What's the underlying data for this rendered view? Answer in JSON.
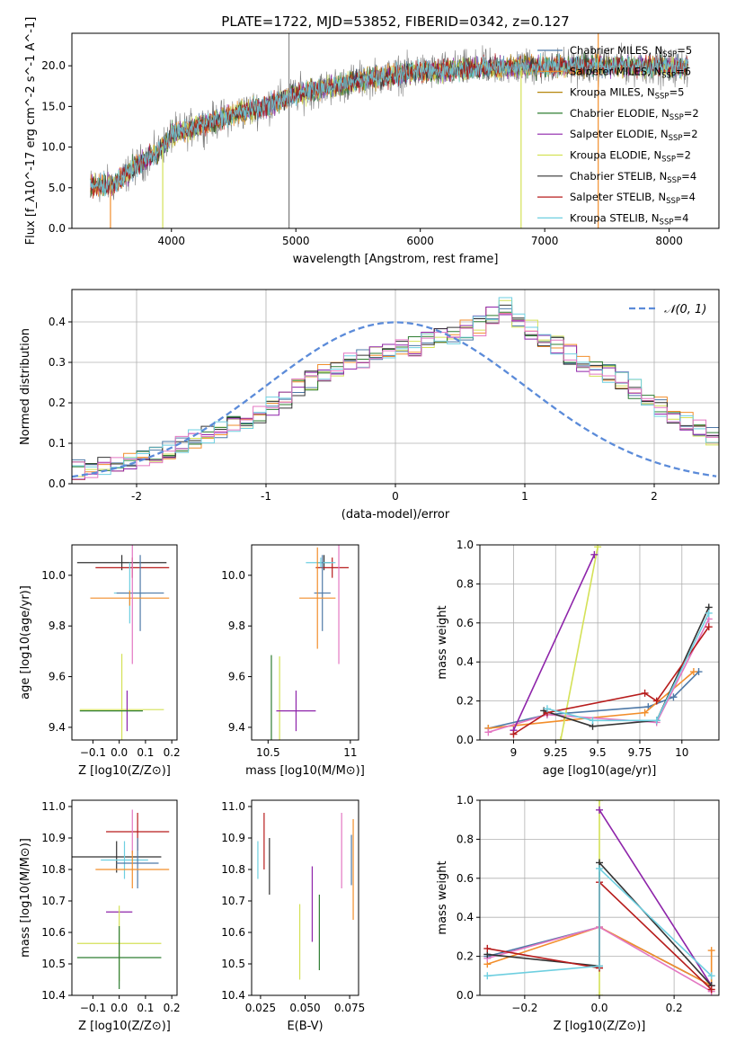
{
  "title": "PLATE=1722, MJD=53852, FIBERID=0342, z=0.127",
  "colors": {
    "Chabrier MILES": "#4e79a7",
    "Salpeter MILES": "#f28e2b",
    "Kroupa MILES": "#b5860b",
    "Chabrier ELODIE": "#2e7d32",
    "Salpeter ELODIE": "#8e24aa",
    "Kroupa ELODIE": "#d4e157",
    "Chabrier STELIB": "#333333",
    "Salpeter STELIB": "#b71c1c",
    "Kroupa STELIB": "#6ecfe0",
    "hist_extra": "#e377c2",
    "gauss": "#5b8bd9"
  },
  "chart_data": [
    {
      "id": "spectrum",
      "type": "line",
      "xlabel": "wavelength [Angstrom, rest frame]",
      "ylabel": "Flux [f_λ10^-17 erg cm^-2 s^-1 A^-1]",
      "xlim": [
        3200,
        8400
      ],
      "ylim": [
        0,
        24
      ],
      "xticks": [
        4000,
        5000,
        6000,
        7000,
        8000
      ],
      "yticks": [
        0,
        5,
        10,
        15,
        20
      ],
      "spectrum_range": [
        3350,
        8150
      ],
      "continuum": {
        "x": [
          3350,
          3550,
          3700,
          3900,
          4000,
          4300,
          4500,
          4800,
          5000,
          5300,
          5600,
          6000,
          6300,
          6600,
          7000,
          7300,
          7600,
          8150
        ],
        "y": [
          5.2,
          5.5,
          7.5,
          9.5,
          11.5,
          13.0,
          14.0,
          15.3,
          16.5,
          17.5,
          18.5,
          19.3,
          19.5,
          19.8,
          19.9,
          20.0,
          20.0,
          19.8
        ]
      },
      "legend": [
        {
          "name": "Chabrier MILES",
          "nssp": "5"
        },
        {
          "name": "Salpeter MILES",
          "nssp": "6"
        },
        {
          "name": "Kroupa MILES",
          "nssp": "5"
        },
        {
          "name": "Chabrier ELODIE",
          "nssp": "2"
        },
        {
          "name": "Salpeter ELODIE",
          "nssp": "2"
        },
        {
          "name": "Kroupa ELODIE",
          "nssp": "2"
        },
        {
          "name": "Chabrier STELIB",
          "nssp": "4"
        },
        {
          "name": "Salpeter STELIB",
          "nssp": "4"
        },
        {
          "name": "Kroupa STELIB",
          "nssp": "4"
        }
      ],
      "legend_position": "top-right",
      "grid": false
    },
    {
      "id": "residuals",
      "type": "bar",
      "xlabel": "(data-model)/error",
      "ylabel": "Normed distribution",
      "xlim": [
        -2.5,
        2.5
      ],
      "ylim": [
        0,
        0.48
      ],
      "xticks": [
        -2,
        -1,
        0,
        1,
        2
      ],
      "yticks": [
        0.0,
        0.1,
        0.2,
        0.3,
        0.4
      ],
      "bin_width": 0.1,
      "histogram": [
        0.035,
        0.03,
        0.045,
        0.05,
        0.055,
        0.06,
        0.07,
        0.085,
        0.1,
        0.11,
        0.12,
        0.13,
        0.15,
        0.16,
        0.17,
        0.19,
        0.21,
        0.235,
        0.255,
        0.27,
        0.285,
        0.3,
        0.31,
        0.32,
        0.33,
        0.335,
        0.34,
        0.35,
        0.36,
        0.37,
        0.38,
        0.39,
        0.42,
        0.435,
        0.41,
        0.38,
        0.36,
        0.34,
        0.32,
        0.3,
        0.285,
        0.27,
        0.255,
        0.235,
        0.21,
        0.19,
        0.17,
        0.155,
        0.14,
        0.12,
        0.105,
        0.09,
        0.08,
        0.07,
        0.06,
        0.05,
        0.045,
        0.04,
        0.035,
        0.03
      ],
      "legend": [
        "𝒩(0, 1)"
      ],
      "legend_position": "top-right",
      "grid": true
    },
    {
      "id": "age_vs_Z",
      "type": "scatter",
      "xlabel": "Z [log10(Z/Z⊙)]",
      "ylabel": "age  [log10(age/yr)]",
      "xlim": [
        -0.18,
        0.22
      ],
      "ylim": [
        9.35,
        10.12
      ],
      "xticks": [
        -0.1,
        0.0,
        0.1,
        0.2
      ],
      "xticklabels": [
        "−0.1",
        "0.0",
        "0.1",
        "0.2"
      ],
      "yticks": [
        9.4,
        9.6,
        9.8,
        10.0
      ],
      "points": [
        {
          "series": "Chabrier STELIB",
          "x": 0.01,
          "y": 10.05,
          "xerr": 0.17,
          "yerr": 0.03
        },
        {
          "series": "Salpeter STELIB",
          "x": 0.05,
          "y": 10.03,
          "xerr": 0.14,
          "yerr": 0.04
        },
        {
          "series": "Kroupa STELIB",
          "x": 0.04,
          "y": 9.93,
          "xerr": 0.06,
          "yerr": 0.12
        },
        {
          "series": "Chabrier MILES",
          "x": 0.08,
          "y": 9.93,
          "xerr": 0.09,
          "yerr": 0.15
        },
        {
          "series": "Salpeter MILES",
          "x": 0.04,
          "y": 9.91,
          "xerr": 0.15,
          "yerr": 0.03
        },
        {
          "series": "hist_extra",
          "x": 0.05,
          "y": 9.95,
          "xerr": 0.0,
          "yerr": 0.3
        },
        {
          "series": "Kroupa ELODIE",
          "x": 0.01,
          "y": 9.47,
          "xerr": 0.16,
          "yerr": 0.22
        },
        {
          "series": "Salpeter ELODIE",
          "x": 0.03,
          "y": 9.465,
          "xerr": 0.0,
          "yerr": 0.08
        },
        {
          "series": "Chabrier ELODIE",
          "x": -0.03,
          "y": 9.465,
          "xerr": 0.12,
          "yerr": 0.0
        }
      ],
      "grid": false
    },
    {
      "id": "age_vs_mass",
      "type": "scatter",
      "xlabel": "mass [log10(M/M⊙)]",
      "ylabel": "",
      "xlim": [
        10.4,
        11.05
      ],
      "ylim": [
        9.35,
        10.12
      ],
      "xticks": [
        10.5,
        11.0
      ],
      "yticks": [
        9.4,
        9.6,
        9.8,
        10.0
      ],
      "points": [
        {
          "series": "Chabrier STELIB",
          "x": 10.84,
          "y": 10.05,
          "xerr": 0.04,
          "yerr": 0.03
        },
        {
          "series": "Salpeter STELIB",
          "x": 10.89,
          "y": 10.03,
          "xerr": 0.1,
          "yerr": 0.04
        },
        {
          "series": "Kroupa STELIB",
          "x": 10.82,
          "y": 10.05,
          "xerr": 0.09,
          "yerr": 0.02
        },
        {
          "series": "Chabrier MILES",
          "x": 10.83,
          "y": 9.93,
          "xerr": 0.05,
          "yerr": 0.15
        },
        {
          "series": "Salpeter MILES",
          "x": 10.8,
          "y": 9.91,
          "xerr": 0.11,
          "yerr": 0.2
        },
        {
          "series": "hist_extra",
          "x": 10.93,
          "y": 9.95,
          "xerr": 0.0,
          "yerr": 0.3
        },
        {
          "series": "Kroupa ELODIE",
          "x": 10.57,
          "y": 9.47,
          "xerr": 0.0,
          "yerr": 0.21
        },
        {
          "series": "Salpeter ELODIE",
          "x": 10.67,
          "y": 9.465,
          "xerr": 0.12,
          "yerr": 0.08
        },
        {
          "series": "Chabrier ELODIE",
          "x": 10.52,
          "y": 9.465,
          "xerr": 0.0,
          "yerr": 0.22
        }
      ],
      "grid": false
    },
    {
      "id": "weight_vs_age",
      "type": "line",
      "xlabel": "age  [log10(age/yr)]",
      "ylabel": "mass weight",
      "xlim": [
        8.8,
        10.22
      ],
      "ylim": [
        0,
        1.0
      ],
      "xticks": [
        9.0,
        9.25,
        9.5,
        9.75,
        10.0
      ],
      "yticks": [
        0.0,
        0.2,
        0.4,
        0.6,
        0.8,
        1.0
      ],
      "series": [
        {
          "name": "Chabrier MILES",
          "x": [
            8.85,
            9.2,
            9.8,
            9.95,
            10.1
          ],
          "y": [
            0.06,
            0.13,
            0.17,
            0.22,
            0.35
          ]
        },
        {
          "name": "Salpeter MILES",
          "x": [
            8.85,
            9.3,
            9.78,
            10.07
          ],
          "y": [
            0.06,
            0.1,
            0.14,
            0.35
          ]
        },
        {
          "name": "hist_extra",
          "x": [
            8.85,
            9.2,
            9.85,
            10.16
          ],
          "y": [
            0.04,
            0.13,
            0.09,
            0.62
          ]
        },
        {
          "name": "Kroupa ELODIE",
          "x": [
            9.28,
            9.5
          ],
          "y": [
            0.0,
            0.99
          ]
        },
        {
          "name": "Salpeter ELODIE",
          "x": [
            9.0,
            9.48
          ],
          "y": [
            0.05,
            0.95
          ]
        },
        {
          "name": "Chabrier STELIB",
          "x": [
            9.18,
            9.47,
            9.85,
            10.16
          ],
          "y": [
            0.15,
            0.07,
            0.1,
            0.68
          ]
        },
        {
          "name": "Salpeter STELIB",
          "x": [
            9.0,
            9.2,
            9.78,
            9.85,
            10.16
          ],
          "y": [
            0.03,
            0.14,
            0.24,
            0.2,
            0.58
          ]
        },
        {
          "name": "Kroupa STELIB",
          "x": [
            9.2,
            9.47,
            9.85,
            10.16
          ],
          "y": [
            0.16,
            0.1,
            0.1,
            0.65
          ]
        }
      ],
      "grid": true
    },
    {
      "id": "mass_vs_Z",
      "type": "scatter",
      "xlabel": "Z [log10(Z/Z⊙)]",
      "ylabel": "mass [log10(M/M⊙)]",
      "xlim": [
        -0.18,
        0.22
      ],
      "ylim": [
        10.4,
        11.02
      ],
      "xticks": [
        -0.1,
        0.0,
        0.1,
        0.2
      ],
      "xticklabels": [
        "−0.1",
        "0.0",
        "0.1",
        "0.2"
      ],
      "yticks": [
        10.4,
        10.5,
        10.6,
        10.7,
        10.8,
        10.9,
        11.0
      ],
      "points": [
        {
          "series": "Salpeter STELIB",
          "x": 0.07,
          "y": 10.92,
          "xerr": 0.12,
          "yerr": 0.06
        },
        {
          "series": "hist_extra",
          "x": 0.05,
          "y": 10.92,
          "xerr": 0.0,
          "yerr": 0.07
        },
        {
          "series": "Chabrier STELIB",
          "x": -0.01,
          "y": 10.84,
          "xerr": 0.17,
          "yerr": 0.05
        },
        {
          "series": "Kroupa STELIB",
          "x": 0.02,
          "y": 10.83,
          "xerr": 0.09,
          "yerr": 0.06
        },
        {
          "series": "Chabrier MILES",
          "x": 0.07,
          "y": 10.82,
          "xerr": 0.08,
          "yerr": 0.08
        },
        {
          "series": "Salpeter MILES",
          "x": 0.05,
          "y": 10.8,
          "xerr": 0.14,
          "yerr": 0.06
        },
        {
          "series": "Salpeter ELODIE",
          "x": 0.0,
          "y": 10.665,
          "xerr": 0.05,
          "yerr": 0.0
        },
        {
          "series": "Kroupa ELODIE",
          "x": 0.0,
          "y": 10.565,
          "xerr": 0.16,
          "yerr": 0.12
        },
        {
          "series": "Chabrier ELODIE",
          "x": 0.0,
          "y": 10.52,
          "xerr": 0.16,
          "yerr": 0.1
        }
      ],
      "grid": false
    },
    {
      "id": "mass_vs_ebv",
      "type": "scatter",
      "xlabel": "E(B-V)",
      "ylabel": "",
      "xlim": [
        0.02,
        0.08
      ],
      "ylim": [
        10.4,
        11.02
      ],
      "xticks": [
        0.025,
        0.05,
        0.075
      ],
      "xticklabels": [
        "0.025",
        "0.050",
        "0.075"
      ],
      "yticks": [
        10.4,
        10.5,
        10.6,
        10.7,
        10.8,
        10.9,
        11.0
      ],
      "points": [
        {
          "series": "Kroupa STELIB",
          "x": 0.0235,
          "y": 10.83,
          "xerr": 0.0,
          "yerr": 0.06
        },
        {
          "series": "Salpeter STELIB",
          "x": 0.027,
          "y": 10.89,
          "xerr": 0.0,
          "yerr": 0.09
        },
        {
          "series": "Chabrier STELIB",
          "x": 0.03,
          "y": 10.81,
          "xerr": 0.0,
          "yerr": 0.09
        },
        {
          "series": "Kroupa ELODIE",
          "x": 0.047,
          "y": 10.57,
          "xerr": 0.0,
          "yerr": 0.12
        },
        {
          "series": "Salpeter ELODIE",
          "x": 0.054,
          "y": 10.69,
          "xerr": 0.0,
          "yerr": 0.12
        },
        {
          "series": "Chabrier ELODIE",
          "x": 0.058,
          "y": 10.6,
          "xerr": 0.0,
          "yerr": 0.12
        },
        {
          "series": "hist_extra",
          "x": 0.0705,
          "y": 10.86,
          "xerr": 0.0,
          "yerr": 0.12
        },
        {
          "series": "Chabrier MILES",
          "x": 0.076,
          "y": 10.83,
          "xerr": 0.0,
          "yerr": 0.08
        },
        {
          "series": "Salpeter MILES",
          "x": 0.077,
          "y": 10.8,
          "xerr": 0.0,
          "yerr": 0.16
        }
      ],
      "grid": false
    },
    {
      "id": "weight_vs_Z",
      "type": "line",
      "xlabel": "Z [log10(Z/Z⊙)]",
      "ylabel": "mass weight",
      "xlim": [
        -0.32,
        0.32
      ],
      "ylim": [
        0,
        1.0
      ],
      "xticks": [
        -0.2,
        0.0,
        0.2
      ],
      "xticklabels": [
        "−0.2",
        "0.0",
        "0.2"
      ],
      "yticks": [
        0.0,
        0.2,
        0.4,
        0.6,
        0.8,
        1.0
      ],
      "series": [
        {
          "name": "Chabrier MILES",
          "x": [
            -0.3,
            0.0,
            0.3
          ],
          "y": [
            0.2,
            0.35,
            0.05
          ]
        },
        {
          "name": "Salpeter MILES",
          "x": [
            -0.3,
            0.0,
            0.3,
            0.3
          ],
          "y": [
            0.16,
            0.35,
            0.05,
            0.23
          ]
        },
        {
          "name": "hist_extra",
          "x": [
            -0.3,
            0.0,
            0.3
          ],
          "y": [
            0.19,
            0.35,
            0.02
          ]
        },
        {
          "name": "Kroupa ELODIE",
          "x": [
            0.0,
            0.0
          ],
          "y": [
            0.0,
            1.0
          ]
        },
        {
          "name": "Salpeter ELODIE",
          "x": [
            0.0,
            0.3
          ],
          "y": [
            0.95,
            0.05
          ]
        },
        {
          "name": "Chabrier STELIB",
          "x": [
            -0.3,
            0.0,
            0.0,
            0.3
          ],
          "y": [
            0.21,
            0.15,
            0.68,
            0.05
          ]
        },
        {
          "name": "Salpeter STELIB",
          "x": [
            -0.3,
            0.0,
            0.0,
            0.3
          ],
          "y": [
            0.24,
            0.14,
            0.58,
            0.03
          ]
        },
        {
          "name": "Kroupa STELIB",
          "x": [
            -0.3,
            0.0,
            0.0,
            0.3
          ],
          "y": [
            0.1,
            0.15,
            0.65,
            0.1
          ]
        }
      ],
      "grid": true
    }
  ]
}
